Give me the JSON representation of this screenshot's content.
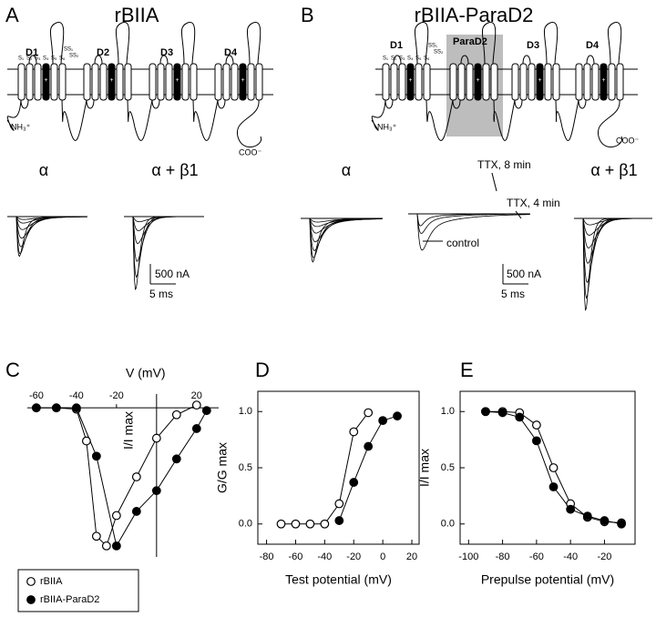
{
  "panel_a": {
    "letter": "A",
    "title": "rBIIA",
    "domains": [
      "D1",
      "D2",
      "D3",
      "D4"
    ],
    "segments": [
      "S₁",
      "S₂",
      "S₃",
      "S₄",
      "S₅",
      "S₆"
    ],
    "pore_loops": [
      "SS₁",
      "SS₂"
    ],
    "n_terminus": "NH₃⁺",
    "c_terminus": "COO⁻",
    "trace_labels": [
      "α",
      "α + β1"
    ],
    "scale_current": "500 nA",
    "scale_time": "5 ms"
  },
  "panel_b": {
    "letter": "B",
    "title": "rBIIA-ParaD2",
    "domains": [
      "D1",
      "ParaD2",
      "D3",
      "D4"
    ],
    "segments": [
      "S₁",
      "S₂",
      "S₃",
      "S₄",
      "S₅",
      "S₆"
    ],
    "pore_loops": [
      "SS₁",
      "SS₂"
    ],
    "n_terminus": "NH₃⁺",
    "c_terminus": "COO⁻",
    "trace_labels": [
      "α",
      "α + β1"
    ],
    "trace_annotations": [
      "TTX, 8 min",
      "TTX, 4 min",
      "control"
    ],
    "scale_current": "500 nA",
    "scale_time": "5 ms"
  },
  "chart_data": [
    {
      "type": "scatter",
      "label": "C",
      "axes": "origin",
      "xlabel": "V (mV)",
      "ylabel": "I/I max",
      "xlim": [
        -64.5,
        31
      ],
      "ylim": [
        -1.08,
        0.1
      ],
      "xticks": [
        -60,
        -40,
        -20,
        20
      ],
      "legend": "below",
      "series": [
        {
          "name": "rBIIA",
          "marker": "open",
          "color": "#000000",
          "x": [
            -60,
            -50,
            -40,
            -35,
            -30,
            -25,
            -20,
            -10,
            0,
            10,
            20
          ],
          "values": [
            0,
            0,
            -0.01,
            -0.24,
            -0.93,
            -1.0,
            -0.78,
            -0.5,
            -0.22,
            -0.05,
            0.02
          ]
        },
        {
          "name": "rBIIA-ParaD2",
          "marker": "filled",
          "color": "#000000",
          "x": [
            -60,
            -50,
            -40,
            -30,
            -20,
            -10,
            0,
            10,
            20,
            25
          ],
          "values": [
            0,
            0,
            0,
            -0.35,
            -1.0,
            -0.75,
            -0.6,
            -0.37,
            -0.15,
            -0.02
          ]
        }
      ]
    },
    {
      "type": "scatter",
      "label": "D",
      "axes": "box",
      "xlabel": "Test potential (mV)",
      "ylabel": "G/G max",
      "xlim": [
        -86,
        25
      ],
      "ylim": [
        -0.18,
        1.18
      ],
      "xticks": [
        -80,
        -60,
        -40,
        -20,
        0,
        20
      ],
      "yticks": [
        {
          "value": 0,
          "label": "0.0"
        },
        {
          "value": 0.5,
          "label": "0.5"
        },
        {
          "value": 1,
          "label": "1.0"
        }
      ],
      "series": [
        {
          "marker": "open",
          "color": "#000000",
          "x": [
            -70,
            -60,
            -50,
            -40,
            -30,
            -20,
            -10
          ],
          "values": [
            0,
            0,
            0,
            0,
            0.18,
            0.82,
            0.99
          ]
        },
        {
          "marker": "filled",
          "color": "#000000",
          "x": [
            -30,
            -20,
            -10,
            0,
            10
          ],
          "values": [
            0.03,
            0.37,
            0.69,
            0.92,
            0.96
          ]
        }
      ]
    },
    {
      "type": "scatter",
      "label": "E",
      "axes": "box",
      "xlabel": "Prepulse potential (mV)",
      "ylabel": "I/I max",
      "xlim": [
        -105,
        -2
      ],
      "ylim": [
        -0.18,
        1.18
      ],
      "xticks": [
        -100,
        -80,
        -60,
        -40,
        -20
      ],
      "yticks": [
        {
          "value": 0,
          "label": "0.0"
        },
        {
          "value": 0.5,
          "label": "0.5"
        },
        {
          "value": 1,
          "label": "1.0"
        }
      ],
      "series": [
        {
          "marker": "open",
          "color": "#000000",
          "x": [
            -90,
            -80,
            -70,
            -60,
            -50,
            -40,
            -30,
            -20,
            -10
          ],
          "values": [
            1,
            1,
            0.99,
            0.88,
            0.5,
            0.18,
            0.06,
            0.02,
            0.01
          ]
        },
        {
          "marker": "filled",
          "color": "#000000",
          "x": [
            -90,
            -80,
            -70,
            -60,
            -50,
            -40,
            -30,
            -20,
            -10
          ],
          "values": [
            1,
            0.99,
            0.95,
            0.74,
            0.33,
            0.13,
            0.07,
            0.03,
            0
          ]
        }
      ]
    }
  ]
}
